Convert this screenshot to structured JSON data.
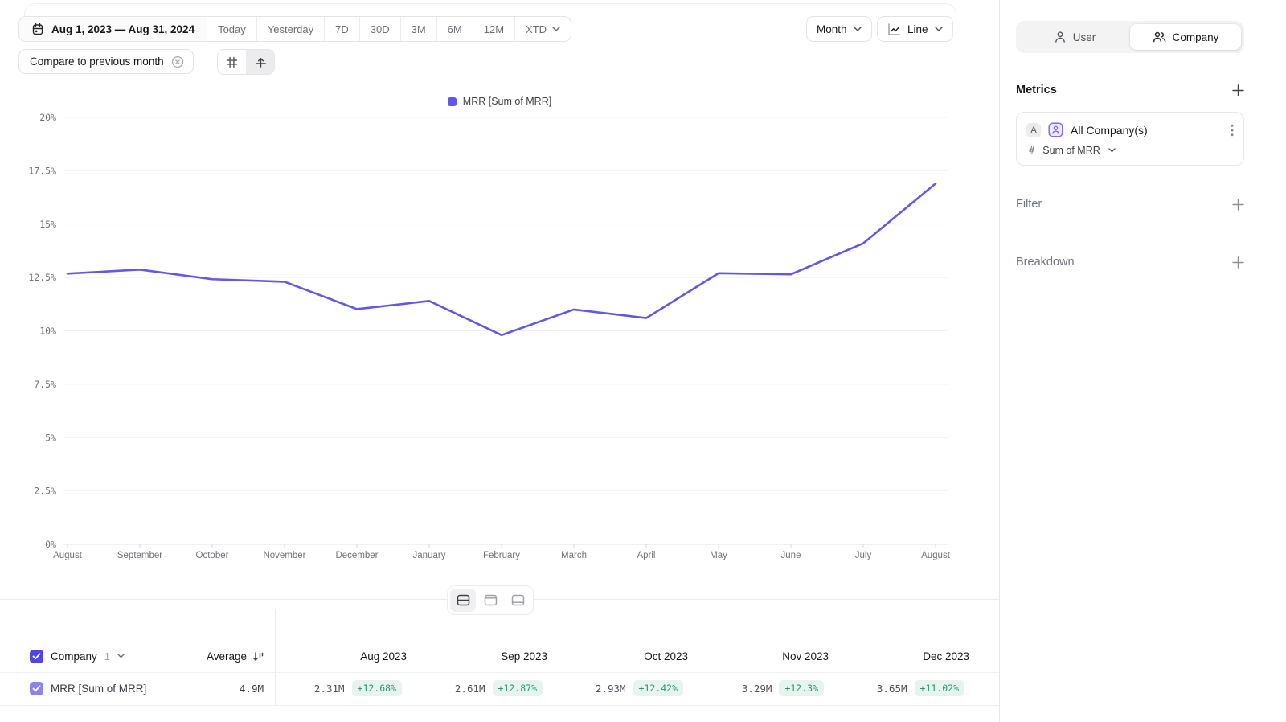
{
  "toolbar": {
    "date_range": "Aug 1, 2023 — Aug 31, 2024",
    "presets": [
      "Today",
      "Yesterday",
      "7D",
      "30D",
      "3M",
      "6M",
      "12M"
    ],
    "preset_dropdown": "XTD",
    "compare_label": "Compare to previous month",
    "granularity": "Month",
    "chart_type": "Line"
  },
  "sidebar": {
    "toggle": {
      "user_label": "User",
      "company_label": "Company",
      "selected": "Company"
    },
    "metrics_title": "Metrics",
    "metric_card": {
      "badge": "A",
      "name": "All Company(s)",
      "hash": "#",
      "aggregation": "Sum of MRR"
    },
    "filter_title": "Filter",
    "breakdown_title": "Breakdown"
  },
  "chart_data": {
    "type": "line",
    "legend": [
      "MRR [Sum of MRR]"
    ],
    "x": [
      "August",
      "September",
      "October",
      "November",
      "December",
      "January",
      "February",
      "March",
      "April",
      "May",
      "June",
      "July",
      "August"
    ],
    "series": [
      {
        "name": "MRR [Sum of MRR]",
        "values": [
          12.68,
          12.87,
          12.42,
          12.3,
          11.02,
          11.4,
          9.8,
          11.0,
          10.6,
          12.7,
          12.65,
          14.1,
          16.9
        ]
      }
    ],
    "ylim": [
      0,
      20
    ],
    "yticks": [
      0,
      2.5,
      5,
      7.5,
      10,
      12.5,
      15,
      17.5,
      20
    ],
    "ytick_suffix": "%",
    "grid": true,
    "legend_position": "top",
    "line_color": "#6357e5"
  },
  "table": {
    "group_label": "Company",
    "group_count": "1",
    "average_label": "Average",
    "columns": [
      "Aug 2023",
      "Sep 2023",
      "Oct 2023",
      "Nov 2023",
      "Dec 2023"
    ],
    "rows": [
      {
        "label": "MRR [Sum of MRR]",
        "average": "4.9M",
        "cells": [
          {
            "value": "2.31M",
            "change": "+12.68%"
          },
          {
            "value": "2.61M",
            "change": "+12.87%"
          },
          {
            "value": "2.93M",
            "change": "+12.42%"
          },
          {
            "value": "3.29M",
            "change": "+12.3%"
          },
          {
            "value": "3.65M",
            "change": "+11.02%"
          }
        ]
      }
    ]
  },
  "colors": {
    "accent": "#6357e5",
    "accent_dark": "#4f46e5",
    "accent_light": "#8d83ef",
    "positive_text": "#27996b",
    "positive_bg": "#e6f4ed",
    "axis_text": "#71717a",
    "gridline": "#f1f1f3"
  }
}
